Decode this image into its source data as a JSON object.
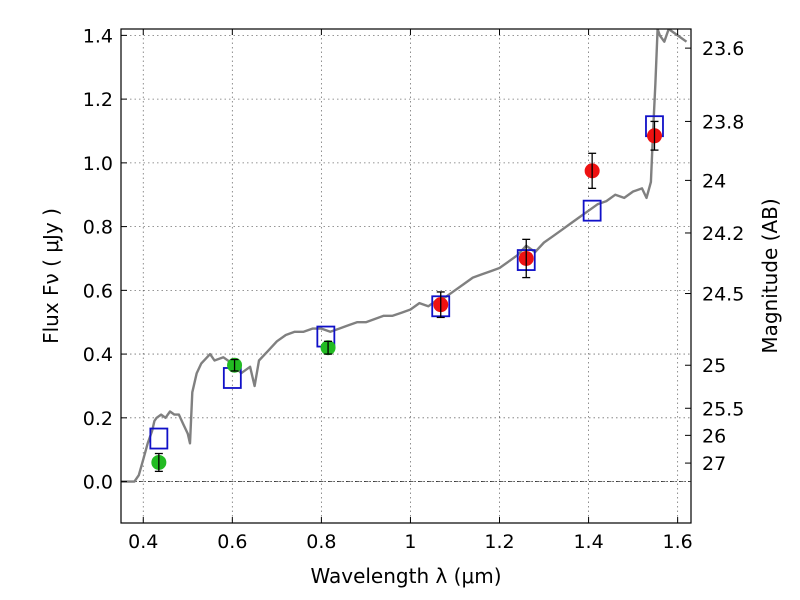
{
  "chart_data": {
    "type": "scatter",
    "title": "",
    "xlabel": "Wavelength  λ (μm)",
    "ylabel": "Flux  Fν  ( μJy )",
    "y2label": "Magnitude (AB)",
    "xlim": [
      0.35,
      1.63
    ],
    "ylim": [
      -0.13,
      1.42
    ],
    "grid": true,
    "xticks": [
      0.4,
      0.6,
      0.8,
      1.0,
      1.2,
      1.4,
      1.6
    ],
    "xtick_labels": [
      "0.4",
      "0.6",
      "0.8",
      "1",
      "1.2",
      "1.4",
      "1.6"
    ],
    "yticks": [
      0.0,
      0.2,
      0.4,
      0.6,
      0.8,
      1.0,
      1.2,
      1.4
    ],
    "ytick_labels": [
      "0.0",
      "0.2",
      "0.4",
      "0.6",
      "0.8",
      "1.0",
      "1.2",
      "1.4"
    ],
    "right_ticks": [
      {
        "label": "23.6",
        "flux": 1.36
      },
      {
        "label": "23.8",
        "flux": 1.13
      },
      {
        "label": "24",
        "flux": 0.945
      },
      {
        "label": "24.2",
        "flux": 0.78
      },
      {
        "label": "24.5",
        "flux": 0.59
      },
      {
        "label": "25",
        "flux": 0.365
      },
      {
        "label": "25.5",
        "flux": 0.23
      },
      {
        "label": "26",
        "flux": 0.145
      },
      {
        "label": "27",
        "flux": 0.058
      }
    ],
    "series": [
      {
        "kind": "line",
        "color": "#808080",
        "x": [
          0.35,
          0.37,
          0.38,
          0.39,
          0.4,
          0.41,
          0.42,
          0.425,
          0.43,
          0.44,
          0.45,
          0.46,
          0.47,
          0.48,
          0.49,
          0.5,
          0.505,
          0.51,
          0.52,
          0.53,
          0.55,
          0.56,
          0.58,
          0.6,
          0.62,
          0.64,
          0.65,
          0.66,
          0.68,
          0.7,
          0.72,
          0.74,
          0.76,
          0.78,
          0.8,
          0.82,
          0.84,
          0.86,
          0.88,
          0.9,
          0.92,
          0.94,
          0.96,
          0.98,
          1.0,
          1.02,
          1.04,
          1.06,
          1.08,
          1.1,
          1.12,
          1.14,
          1.16,
          1.18,
          1.2,
          1.22,
          1.24,
          1.26,
          1.28,
          1.3,
          1.32,
          1.34,
          1.36,
          1.38,
          1.4,
          1.42,
          1.44,
          1.46,
          1.48,
          1.5,
          1.52,
          1.53,
          1.54,
          1.545,
          1.55,
          1.555,
          1.56,
          1.57,
          1.58,
          1.6,
          1.62
        ],
        "y": [
          0.0,
          0.0,
          0.0,
          0.02,
          0.07,
          0.12,
          0.16,
          0.19,
          0.2,
          0.21,
          0.2,
          0.22,
          0.21,
          0.21,
          0.18,
          0.15,
          0.12,
          0.28,
          0.34,
          0.37,
          0.4,
          0.38,
          0.39,
          0.37,
          0.34,
          0.36,
          0.3,
          0.38,
          0.41,
          0.44,
          0.46,
          0.47,
          0.47,
          0.48,
          0.48,
          0.47,
          0.48,
          0.49,
          0.5,
          0.5,
          0.51,
          0.52,
          0.52,
          0.53,
          0.54,
          0.56,
          0.55,
          0.57,
          0.58,
          0.6,
          0.62,
          0.64,
          0.65,
          0.66,
          0.67,
          0.69,
          0.71,
          0.74,
          0.72,
          0.75,
          0.77,
          0.79,
          0.81,
          0.83,
          0.85,
          0.87,
          0.88,
          0.9,
          0.89,
          0.91,
          0.92,
          0.89,
          0.94,
          1.1,
          1.25,
          1.42,
          1.4,
          1.38,
          1.42,
          1.4,
          1.38
        ]
      },
      {
        "kind": "markers-square",
        "color": "#1010c8",
        "x": [
          0.435,
          0.6,
          0.81,
          1.068,
          1.26,
          1.408,
          1.548
        ],
        "y": [
          0.135,
          0.325,
          0.455,
          0.55,
          0.695,
          0.85,
          1.115
        ]
      },
      {
        "kind": "markers-circle",
        "color": "#22bb22",
        "x": [
          0.435,
          0.605,
          0.815
        ],
        "y": [
          0.06,
          0.365,
          0.42
        ],
        "yerr": [
          0.028,
          0.018,
          0.02
        ]
      },
      {
        "kind": "markers-circle",
        "color": "#ee1111",
        "x": [
          1.068,
          1.26,
          1.408,
          1.548
        ],
        "y": [
          0.555,
          0.7,
          0.975,
          1.085
        ],
        "yerr": [
          0.04,
          0.06,
          0.055,
          0.045
        ]
      }
    ]
  }
}
